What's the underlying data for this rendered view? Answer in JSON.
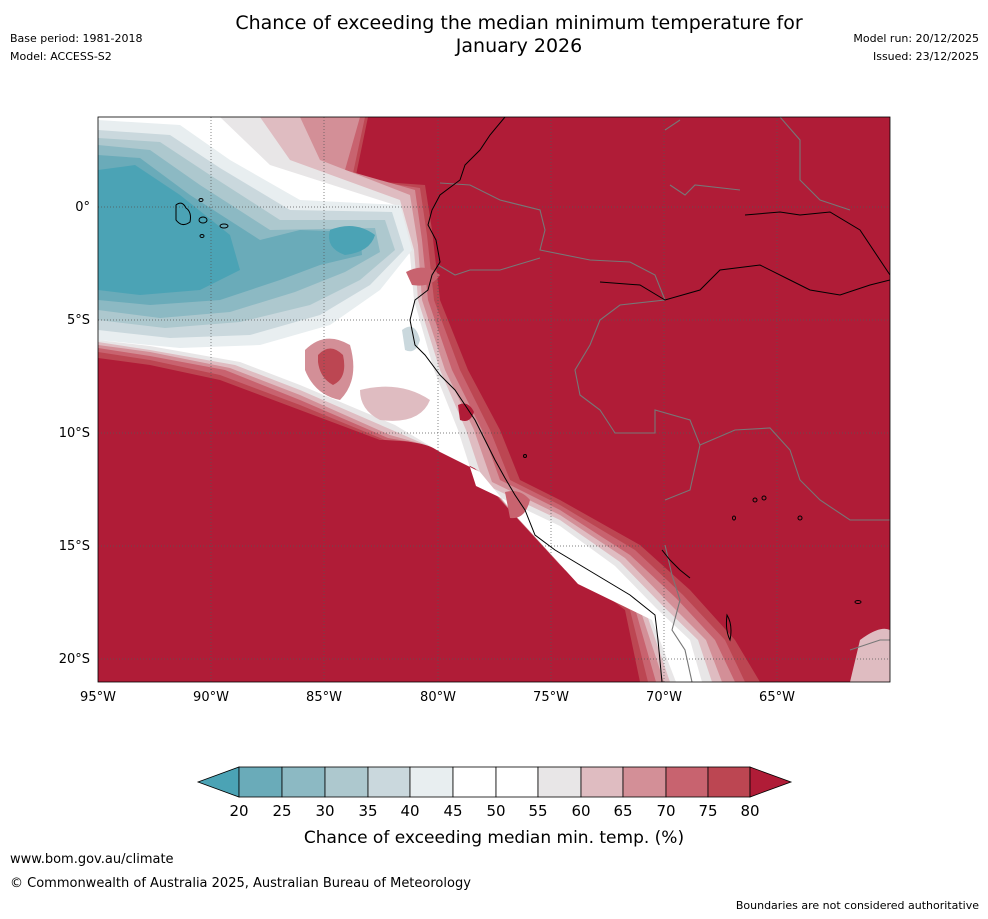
{
  "header": {
    "title_line1": "Chance of exceeding the median minimum temperature for",
    "title_line2": "January 2026",
    "base_period": "Base period: 1981-2018",
    "model": "Model: ACCESS-S2",
    "model_run": "Model run: 20/12/2025",
    "issued": "Issued: 23/12/2025"
  },
  "map": {
    "region": "Tropical eastern Pacific / western South America",
    "lat_labels": [
      "0°",
      "5°S",
      "10°S",
      "15°S",
      "20°S"
    ],
    "lon_labels": [
      "95°W",
      "90°W",
      "85°W",
      "80°W",
      "75°W",
      "70°W",
      "65°W"
    ],
    "lat_range": [
      -21,
      4
    ],
    "lon_range": [
      -95,
      -60
    ]
  },
  "legend": {
    "label": "Chance of exceeding median min. temp. (%)",
    "ticks": [
      "20",
      "25",
      "30",
      "35",
      "40",
      "45",
      "50",
      "55",
      "60",
      "65",
      "70",
      "75",
      "80"
    ],
    "colors": [
      "#4ba3b5",
      "#6aabb9",
      "#8cb9c3",
      "#adc8ce",
      "#cad8dd",
      "#e8eef0",
      "#ffffff",
      "#ffffff",
      "#e8e6e7",
      "#dfbcc1",
      "#d38f97",
      "#c8636f",
      "#bc4652",
      "#b01c37"
    ]
  },
  "footer": {
    "url": "www.bom.gov.au/climate",
    "copyright": "© Commonwealth of Australia 2025, Australian Bureau of Meteorology",
    "disclaimer": "Boundaries are not considered authoritative"
  }
}
